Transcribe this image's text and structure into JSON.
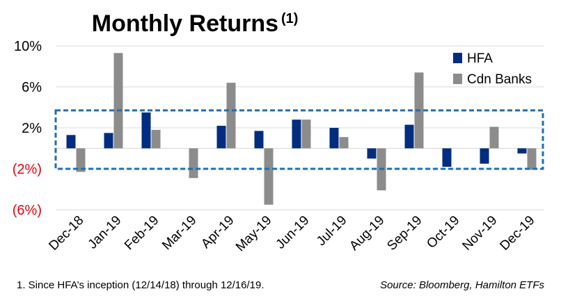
{
  "chart_data": {
    "type": "bar",
    "title": "Monthly Returns",
    "title_superscript": "(1)",
    "categories": [
      "Dec-18",
      "Jan-19",
      "Feb-19",
      "Mar-19",
      "Apr-19",
      "May-19",
      "Jun-19",
      "Jul-19",
      "Aug-19",
      "Sep-19",
      "Oct-19",
      "Nov-19",
      "Dec-19"
    ],
    "series": [
      {
        "name": "HFA",
        "color": "#002D7F",
        "values": [
          1.3,
          1.5,
          3.5,
          0.0,
          2.2,
          1.7,
          2.8,
          2.0,
          -1.0,
          2.3,
          -1.8,
          -1.5,
          -0.5
        ]
      },
      {
        "name": "Cdn Banks",
        "color": "#8C8C8C",
        "values": [
          -2.3,
          9.3,
          1.8,
          -2.9,
          6.4,
          -5.5,
          2.8,
          1.1,
          -4.1,
          7.4,
          0.0,
          2.1,
          -2.1
        ]
      }
    ],
    "yticks": [
      {
        "value": 10,
        "label": "10%",
        "color": "#000000"
      },
      {
        "value": 6,
        "label": "6%",
        "color": "#000000"
      },
      {
        "value": 2,
        "label": "2%",
        "color": "#000000"
      },
      {
        "value": -2,
        "label": "(2%)",
        "color": "#E8000B"
      },
      {
        "value": -6,
        "label": "(6%)",
        "color": "#E8000B"
      }
    ],
    "ylim": [
      -6,
      10
    ],
    "grid": true,
    "legend_position": "top-right",
    "highlight_band": {
      "from": -2,
      "to": 3.7,
      "color": "#1F6EB5"
    },
    "xlabel": "",
    "ylabel": ""
  },
  "footnote": "1. Since HFA’s inception (12/14/18) through 12/16/19.",
  "source": "Source: Bloomberg, Hamilton ETFs"
}
